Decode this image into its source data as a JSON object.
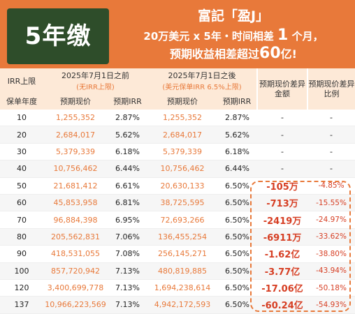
{
  "header": {
    "badge": "5年缴",
    "line1": "富記「盈J」",
    "line2_prefix": "20万美元 x 5年・时间相差 ",
    "line2_num": "1",
    "line2_suffix": " 个月，",
    "line3_prefix": "预期收益相差超过",
    "line3_num": "60",
    "line3_suffix": "亿!",
    "bg_color": "#e8793a",
    "badge_color": "#2e4d2a"
  },
  "table": {
    "irr_cap_label": "IRR上限",
    "before_title": "2025年7月1日之前",
    "before_note": "(无IRR上限)",
    "after_title": "2025年7月1日之後",
    "after_note": "(美元保单IRR 6.5%上限)",
    "diff_amount_header": "预期现价差异金额",
    "diff_ratio_header": "预期现价差异比例",
    "col_year": "保单年度",
    "col_cash1": "预期现价",
    "col_irr1": "预期IRR",
    "col_cash2": "预期现价",
    "col_irr2": "预期IRR",
    "rows": [
      {
        "year": "10",
        "cash1": "1,255,352",
        "irr1": "2.87%",
        "cash2": "1,255,352",
        "irr2": "2.87%",
        "diff": "-",
        "ratio": "-"
      },
      {
        "year": "20",
        "cash1": "2,684,017",
        "irr1": "5.62%",
        "cash2": "2,684,017",
        "irr2": "5.62%",
        "diff": "-",
        "ratio": "-"
      },
      {
        "year": "30",
        "cash1": "5,379,339",
        "irr1": "6.18%",
        "cash2": "5,379,339",
        "irr2": "6.18%",
        "diff": "-",
        "ratio": "-"
      },
      {
        "year": "40",
        "cash1": "10,756,462",
        "irr1": "6.44%",
        "cash2": "10,756,462",
        "irr2": "6.44%",
        "diff": "-",
        "ratio": "-"
      },
      {
        "year": "50",
        "cash1": "21,681,412",
        "irr1": "6.61%",
        "cash2": "20,630,133",
        "irr2": "6.50%",
        "diff": "-105万",
        "ratio": "-4.85%"
      },
      {
        "year": "60",
        "cash1": "45,853,958",
        "irr1": "6.81%",
        "cash2": "38,725,595",
        "irr2": "6.50%",
        "diff": "-713万",
        "ratio": "-15.55%"
      },
      {
        "year": "70",
        "cash1": "96,884,398",
        "irr1": "6.95%",
        "cash2": "72,693,266",
        "irr2": "6.50%",
        "diff": "-2419万",
        "ratio": "-24.97%"
      },
      {
        "year": "80",
        "cash1": "205,562,831",
        "irr1": "7.06%",
        "cash2": "136,455,254",
        "irr2": "6.50%",
        "diff": "-6911万",
        "ratio": "-33.62%"
      },
      {
        "year": "90",
        "cash1": "418,531,055",
        "irr1": "7.08%",
        "cash2": "256,145,271",
        "irr2": "6.50%",
        "diff": "-1.62亿",
        "ratio": "-38.80%"
      },
      {
        "year": "100",
        "cash1": "857,720,942",
        "irr1": "7.13%",
        "cash2": "480,819,885",
        "irr2": "6.50%",
        "diff": "-3.77亿",
        "ratio": "-43.94%"
      },
      {
        "year": "120",
        "cash1": "3,400,699,778",
        "irr1": "7.13%",
        "cash2": "1,694,238,614",
        "irr2": "6.50%",
        "diff": "-17.06亿",
        "ratio": "-50.18%"
      },
      {
        "year": "137",
        "cash1": "10,966,223,569",
        "irr1": "7.13%",
        "cash2": "4,942,172,593",
        "irr2": "6.50%",
        "diff": "-60.24亿",
        "ratio": "-54.93%"
      }
    ]
  }
}
